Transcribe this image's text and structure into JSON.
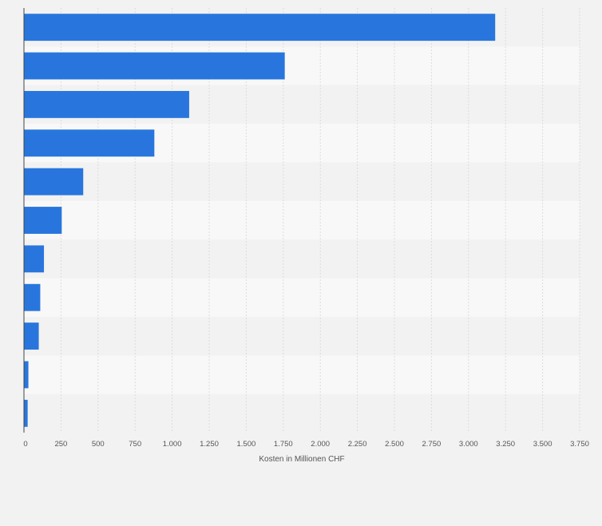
{
  "chart_data": {
    "type": "bar",
    "orientation": "horizontal",
    "categories": [
      "",
      "",
      "",
      "",
      "",
      "",
      "",
      "",
      "",
      "",
      ""
    ],
    "values": [
      3180,
      1760,
      1115,
      880,
      400,
      255,
      135,
      110,
      100,
      30,
      25
    ],
    "xlabel": "Kosten in Millionen CHF",
    "ylabel": "",
    "xlim": [
      0,
      3750
    ],
    "xticks": [
      0,
      250,
      500,
      750,
      1000,
      1250,
      1500,
      1750,
      2000,
      2250,
      2500,
      2750,
      3000,
      3250,
      3500,
      3750
    ],
    "xtick_labels": [
      "0",
      "250",
      "500",
      "750",
      "1.000",
      "1.250",
      "1.500",
      "1.750",
      "2.000",
      "2.250",
      "2.500",
      "2.750",
      "3.000",
      "3.250",
      "3.500",
      "3.750"
    ],
    "grid": true,
    "bar_color": "#2876dd",
    "row_colors": [
      "#f2f2f2",
      "#f8f8f8"
    ],
    "grid_color": "#dcdcdc",
    "axis_color": "#444444"
  }
}
